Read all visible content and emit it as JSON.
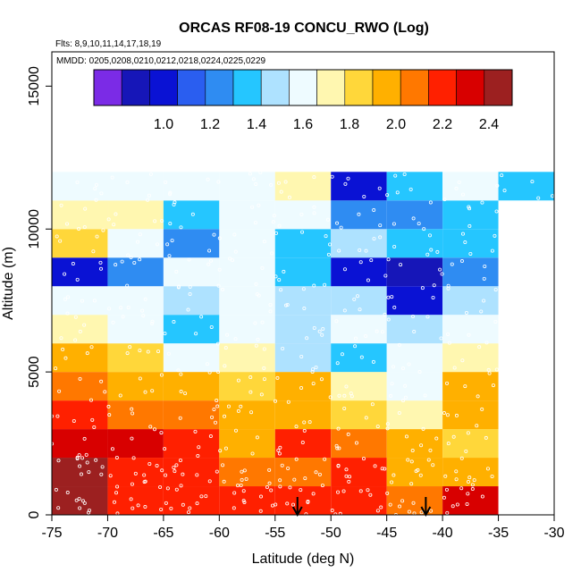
{
  "chart_data": {
    "type": "heatmap",
    "title": "ORCAS RF08-19 CONCU_RWO (Log)",
    "flights_note": "Flts: 8,9,10,11,14,17,18,19",
    "dates_note": "MMDD: 0205,0208,0210,0212,0218,0224,0225,0229",
    "xlabel": "Latitude (deg N)",
    "ylabel": "Altitude (m)",
    "xlim": [
      -75,
      -30
    ],
    "ylim": [
      0,
      16200
    ],
    "xticks": [
      -75,
      -70,
      -65,
      -60,
      -55,
      -50,
      -45,
      -40,
      -35,
      -30
    ],
    "yticks": [
      0,
      5000,
      10000,
      15000
    ],
    "x_bin_edges": [
      -75,
      -70,
      -65,
      -60,
      -55,
      -50,
      -45,
      -40,
      -35,
      -30
    ],
    "y_bin_edges": [
      0,
      1000,
      2000,
      3000,
      4000,
      5000,
      6000,
      7000,
      8000,
      9000,
      10000,
      11000,
      12000
    ],
    "colorbar": {
      "range": [
        0.7,
        2.5
      ],
      "ticks": [
        1.0,
        1.2,
        1.4,
        1.6,
        1.8,
        2.0,
        2.2,
        2.4
      ],
      "tick_labels": [
        "1.0",
        "1.2",
        "1.4",
        "1.6",
        "1.8",
        "2.0",
        "2.2",
        "2.4"
      ],
      "colors": [
        "#7b2be6",
        "#1616b8",
        "#0a12d4",
        "#2a5ef0",
        "#2f8cf2",
        "#25c6ff",
        "#aee2ff",
        "#eefbff",
        "#fff7b0",
        "#ffd73a",
        "#ffb000",
        "#ff7800",
        "#ff2000",
        "#d80000",
        "#9c2020"
      ]
    },
    "values": [
      [
        2.4,
        2.25,
        2.25,
        2.25,
        2.2,
        2.15,
        2.05,
        2.3,
        null
      ],
      [
        2.45,
        2.25,
        2.2,
        2.05,
        2.05,
        2.2,
        2.0,
        1.9,
        null
      ],
      [
        2.3,
        2.35,
        2.15,
        2.0,
        2.2,
        2.05,
        1.95,
        1.85,
        null
      ],
      [
        2.15,
        2.1,
        2.1,
        1.95,
        2.0,
        1.85,
        1.75,
        1.9,
        null
      ],
      [
        2.1,
        2.0,
        2.0,
        1.85,
        1.95,
        1.7,
        1.6,
        1.95,
        null
      ],
      [
        1.95,
        1.85,
        1.55,
        1.7,
        1.5,
        1.4,
        1.6,
        1.7,
        null
      ],
      [
        1.75,
        1.65,
        1.4,
        1.55,
        1.5,
        1.65,
        1.5,
        1.55,
        null
      ],
      [
        1.6,
        1.55,
        1.5,
        1.55,
        1.5,
        1.5,
        1.0,
        1.5,
        null
      ],
      [
        1.0,
        1.2,
        1.55,
        1.6,
        1.4,
        1.0,
        0.9,
        1.2,
        null
      ],
      [
        1.85,
        1.65,
        1.2,
        1.6,
        1.35,
        1.5,
        1.3,
        1.3,
        null
      ],
      [
        1.7,
        1.7,
        1.35,
        1.6,
        1.6,
        1.2,
        1.2,
        1.4,
        null
      ],
      [
        1.6,
        1.65,
        1.6,
        1.65,
        1.75,
        0.95,
        1.3,
        1.6,
        1.4
      ]
    ],
    "arrows": [
      {
        "lat": -53.0,
        "label": ""
      },
      {
        "lat": -41.5,
        "label": ""
      }
    ]
  }
}
